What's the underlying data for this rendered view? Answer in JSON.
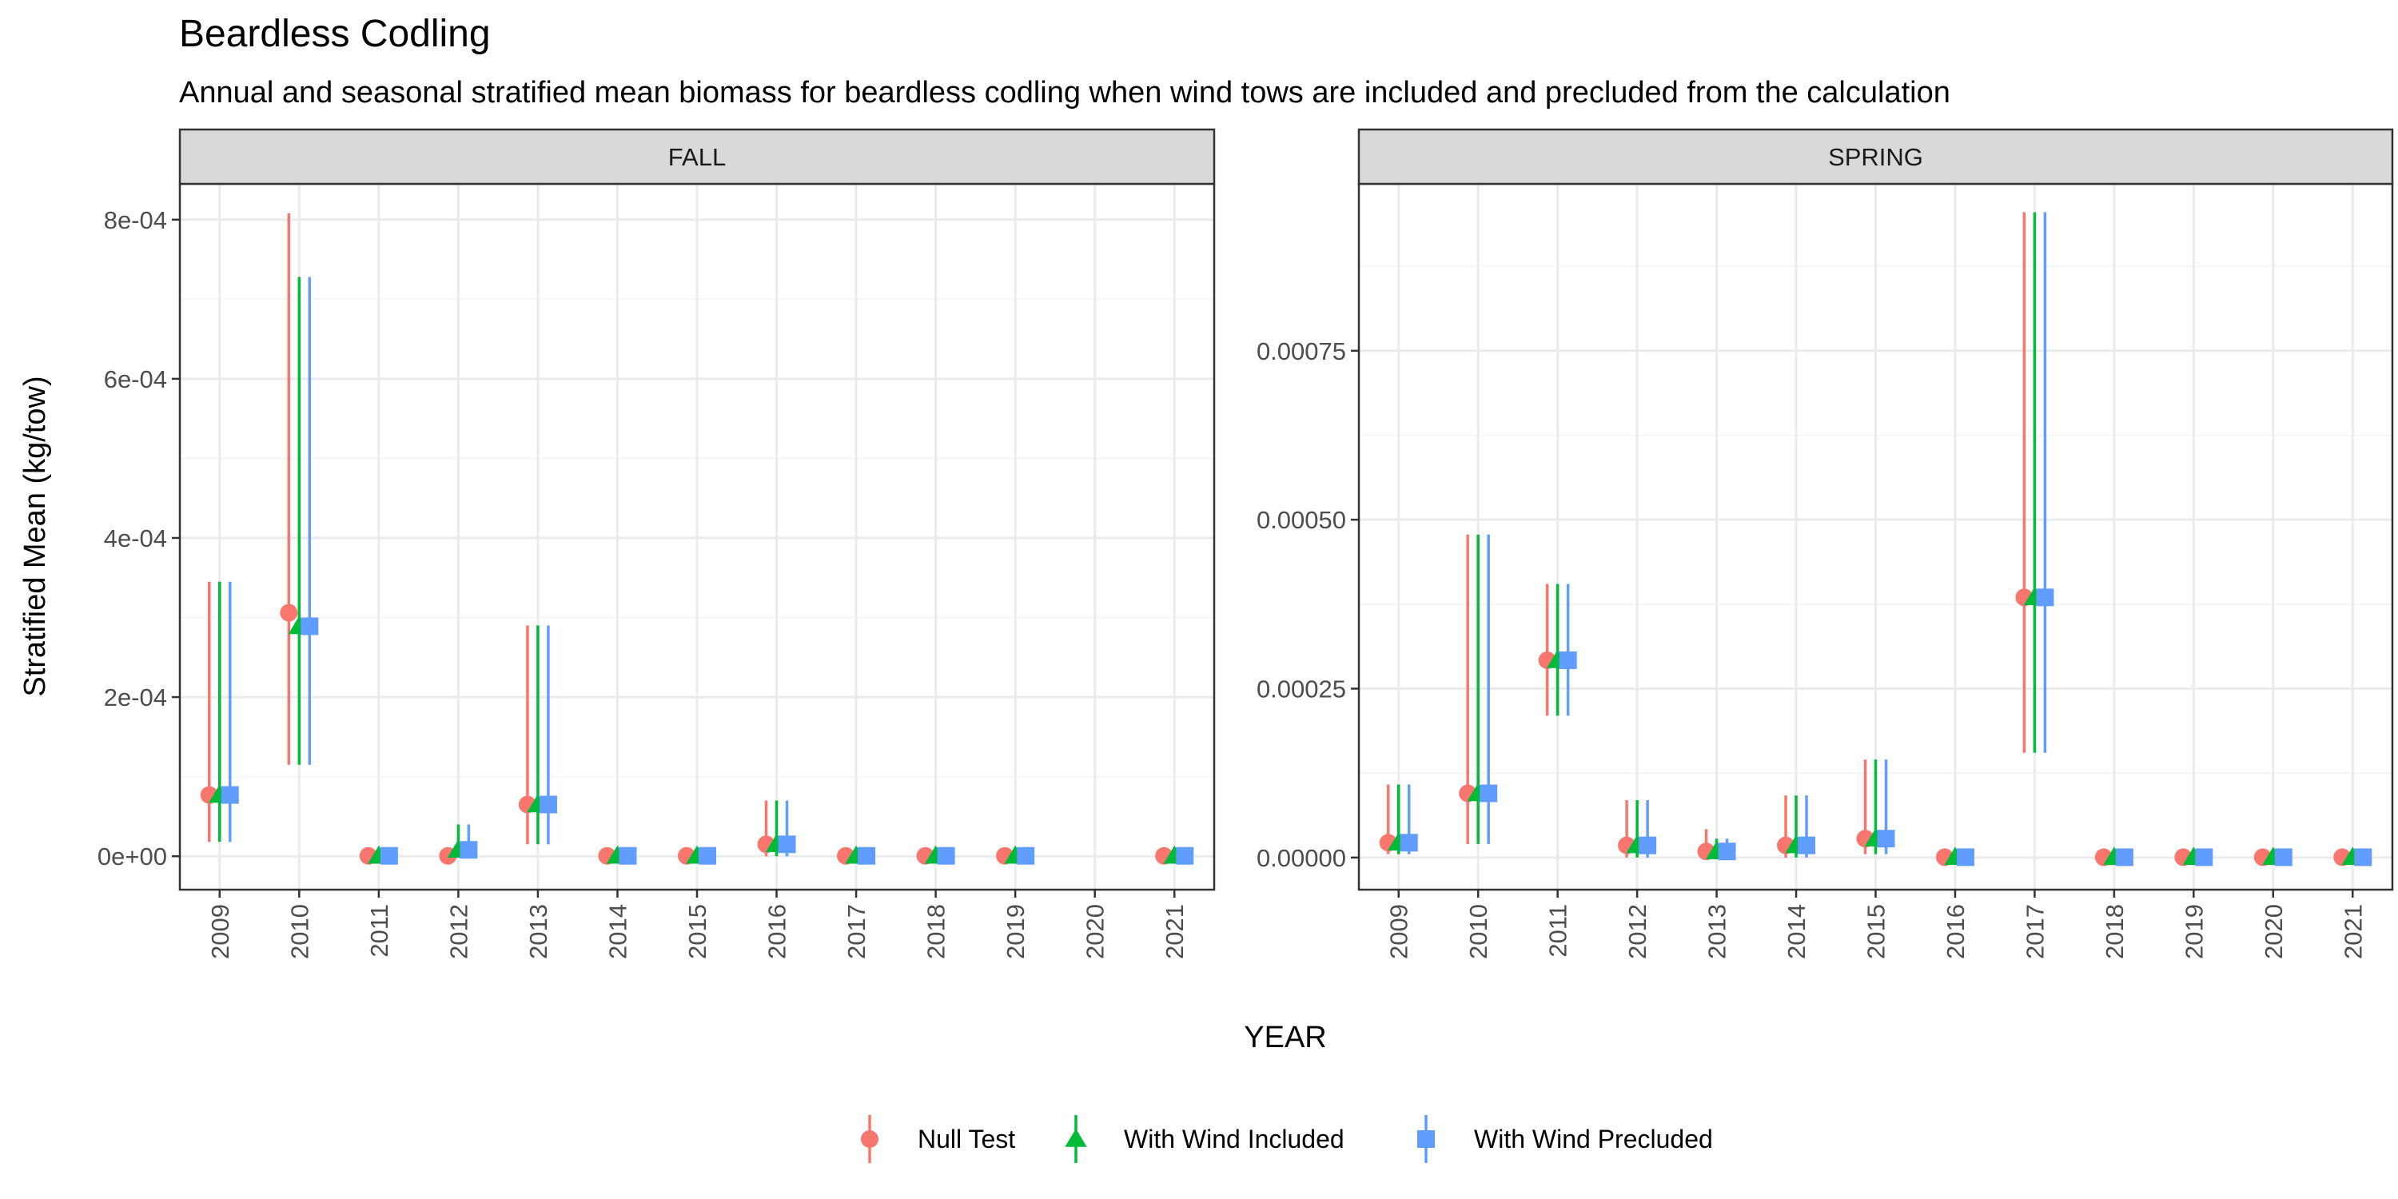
{
  "title": "Beardless Codling",
  "subtitle": "Annual and seasonal stratified mean biomass for beardless codling when wind tows are included and precluded from the calculation",
  "ylabel": "Stratified Mean (kg/tow)",
  "xlabel": "YEAR",
  "colors": {
    "null_test": "#F8766D",
    "with_wind_included": "#00BA38",
    "with_wind_precluded": "#619CFF",
    "strip_fill": "#D9D9D9",
    "panel_border": "#333333",
    "grid_major": "#EBEBEB",
    "grid_minor": "#F4F4F4"
  },
  "legend": {
    "position": "bottom",
    "items": [
      {
        "key": "null_test",
        "label": "Null Test",
        "shape": "circle"
      },
      {
        "key": "with_wind_included",
        "label": "With Wind Included",
        "shape": "triangle"
      },
      {
        "key": "with_wind_precluded",
        "label": "With Wind Precluded",
        "shape": "square"
      }
    ]
  },
  "chart_data": [
    {
      "type": "scatter",
      "panel": "FALL",
      "years": [
        "2009",
        "2010",
        "2011",
        "2012",
        "2013",
        "2014",
        "2015",
        "2016",
        "2017",
        "2018",
        "2019",
        "2020",
        "2021"
      ],
      "ylim": [
        -4.2e-05,
        0.000845
      ],
      "yticks": [
        0,
        0.0002,
        0.0004,
        0.0006,
        0.0008
      ],
      "ytick_labels": [
        "0e+00",
        "2e-04",
        "4e-04",
        "6e-04",
        "8e-04"
      ],
      "grid": true,
      "series": [
        {
          "name": "Null Test",
          "key": "null_test",
          "points": [
            {
              "year": "2009",
              "y": 7.7e-05,
              "lo": 1.8e-05,
              "hi": 0.000345
            },
            {
              "year": "2010",
              "y": 0.000306,
              "lo": 0.000115,
              "hi": 0.000808
            },
            {
              "year": "2011",
              "y": 5e-07,
              "lo": 0,
              "hi": 1e-06
            },
            {
              "year": "2012",
              "y": 5e-07,
              "lo": 0,
              "hi": 1e-06
            },
            {
              "year": "2013",
              "y": 6.5e-05,
              "lo": 1.5e-05,
              "hi": 0.00029
            },
            {
              "year": "2014",
              "y": 5e-07,
              "lo": 0,
              "hi": 1e-06
            },
            {
              "year": "2015",
              "y": 5e-07,
              "lo": 0,
              "hi": 1e-06
            },
            {
              "year": "2016",
              "y": 1.5e-05,
              "lo": 0,
              "hi": 7e-05
            },
            {
              "year": "2017",
              "y": 5e-07,
              "lo": 0,
              "hi": 1e-06
            },
            {
              "year": "2018",
              "y": 5e-07,
              "lo": 0,
              "hi": 1e-06
            },
            {
              "year": "2019",
              "y": 5e-07,
              "lo": 0,
              "hi": 1e-06
            },
            {
              "year": "2021",
              "y": 5e-07,
              "lo": 0,
              "hi": 1e-06
            }
          ]
        },
        {
          "name": "With Wind Included",
          "key": "with_wind_included",
          "points": [
            {
              "year": "2009",
              "y": 7.7e-05,
              "lo": 1.8e-05,
              "hi": 0.000345
            },
            {
              "year": "2010",
              "y": 0.000289,
              "lo": 0.000115,
              "hi": 0.000728
            },
            {
              "year": "2011",
              "y": 5e-07,
              "lo": 0,
              "hi": 1e-06
            },
            {
              "year": "2012",
              "y": 8e-06,
              "lo": 0,
              "hi": 4e-05
            },
            {
              "year": "2013",
              "y": 6.5e-05,
              "lo": 1.5e-05,
              "hi": 0.00029
            },
            {
              "year": "2014",
              "y": 5e-07,
              "lo": 0,
              "hi": 1e-06
            },
            {
              "year": "2015",
              "y": 5e-07,
              "lo": 0,
              "hi": 1e-06
            },
            {
              "year": "2016",
              "y": 1.5e-05,
              "lo": 0,
              "hi": 7e-05
            },
            {
              "year": "2017",
              "y": 5e-07,
              "lo": 0,
              "hi": 1e-06
            },
            {
              "year": "2018",
              "y": 5e-07,
              "lo": 0,
              "hi": 1e-06
            },
            {
              "year": "2019",
              "y": 5e-07,
              "lo": 0,
              "hi": 1e-06
            },
            {
              "year": "2021",
              "y": 5e-07,
              "lo": 0,
              "hi": 1e-06
            }
          ]
        },
        {
          "name": "With Wind Precluded",
          "key": "with_wind_precluded",
          "points": [
            {
              "year": "2009",
              "y": 7.7e-05,
              "lo": 1.8e-05,
              "hi": 0.000345
            },
            {
              "year": "2010",
              "y": 0.000289,
              "lo": 0.000115,
              "hi": 0.000728
            },
            {
              "year": "2011",
              "y": 5e-07,
              "lo": 0,
              "hi": 1e-06
            },
            {
              "year": "2012",
              "y": 8e-06,
              "lo": 0,
              "hi": 4e-05
            },
            {
              "year": "2013",
              "y": 6.5e-05,
              "lo": 1.5e-05,
              "hi": 0.00029
            },
            {
              "year": "2014",
              "y": 5e-07,
              "lo": 0,
              "hi": 1e-06
            },
            {
              "year": "2015",
              "y": 5e-07,
              "lo": 0,
              "hi": 1e-06
            },
            {
              "year": "2016",
              "y": 1.5e-05,
              "lo": 0,
              "hi": 7e-05
            },
            {
              "year": "2017",
              "y": 5e-07,
              "lo": 0,
              "hi": 1e-06
            },
            {
              "year": "2018",
              "y": 5e-07,
              "lo": 0,
              "hi": 1e-06
            },
            {
              "year": "2019",
              "y": 5e-07,
              "lo": 0,
              "hi": 1e-06
            },
            {
              "year": "2021",
              "y": 5e-07,
              "lo": 0,
              "hi": 1e-06
            }
          ]
        }
      ]
    },
    {
      "type": "scatter",
      "panel": "SPRING",
      "years": [
        "2009",
        "2010",
        "2011",
        "2012",
        "2013",
        "2014",
        "2015",
        "2016",
        "2017",
        "2018",
        "2019",
        "2020",
        "2021"
      ],
      "ylim": [
        -4.75e-05,
        0.000997
      ],
      "yticks": [
        0,
        0.00025,
        0.0005,
        0.00075
      ],
      "ytick_labels": [
        "0.00000",
        "0.00025",
        "0.00050",
        "0.00075"
      ],
      "grid": true,
      "series": [
        {
          "name": "Null Test",
          "key": "null_test",
          "points": [
            {
              "year": "2009",
              "y": 2.2e-05,
              "lo": 5e-06,
              "hi": 0.000108
            },
            {
              "year": "2010",
              "y": 9.5e-05,
              "lo": 2e-05,
              "hi": 0.000478
            },
            {
              "year": "2011",
              "y": 0.000292,
              "lo": 0.00021,
              "hi": 0.000405
            },
            {
              "year": "2012",
              "y": 1.8e-05,
              "lo": 0,
              "hi": 8.5e-05
            },
            {
              "year": "2013",
              "y": 9e-06,
              "lo": 0,
              "hi": 4.2e-05
            },
            {
              "year": "2014",
              "y": 1.8e-05,
              "lo": 0,
              "hi": 9.2e-05
            },
            {
              "year": "2015",
              "y": 2.8e-05,
              "lo": 5e-06,
              "hi": 0.000145
            },
            {
              "year": "2016",
              "y": 5e-07,
              "lo": 0,
              "hi": 1e-06
            },
            {
              "year": "2017",
              "y": 0.000385,
              "lo": 0.000155,
              "hi": 0.000955
            },
            {
              "year": "2018",
              "y": 5e-07,
              "lo": 0,
              "hi": 1e-06
            },
            {
              "year": "2019",
              "y": 5e-07,
              "lo": 0,
              "hi": 1e-06
            },
            {
              "year": "2020",
              "y": 5e-07,
              "lo": 0,
              "hi": 1e-06
            },
            {
              "year": "2021",
              "y": 5e-07,
              "lo": 0,
              "hi": 1e-06
            }
          ]
        },
        {
          "name": "With Wind Included",
          "key": "with_wind_included",
          "points": [
            {
              "year": "2009",
              "y": 2.2e-05,
              "lo": 5e-06,
              "hi": 0.000108
            },
            {
              "year": "2010",
              "y": 9.5e-05,
              "lo": 2e-05,
              "hi": 0.000478
            },
            {
              "year": "2011",
              "y": 0.000292,
              "lo": 0.00021,
              "hi": 0.000405
            },
            {
              "year": "2012",
              "y": 1.8e-05,
              "lo": 0,
              "hi": 8.5e-05
            },
            {
              "year": "2013",
              "y": 9e-06,
              "lo": 0,
              "hi": 2.8e-05
            },
            {
              "year": "2014",
              "y": 1.8e-05,
              "lo": 0,
              "hi": 9.2e-05
            },
            {
              "year": "2015",
              "y": 2.8e-05,
              "lo": 5e-06,
              "hi": 0.000145
            },
            {
              "year": "2016",
              "y": 5e-07,
              "lo": 0,
              "hi": 1e-06
            },
            {
              "year": "2017",
              "y": 0.000385,
              "lo": 0.000155,
              "hi": 0.000955
            },
            {
              "year": "2018",
              "y": 5e-07,
              "lo": 0,
              "hi": 1e-06
            },
            {
              "year": "2019",
              "y": 5e-07,
              "lo": 0,
              "hi": 1e-06
            },
            {
              "year": "2020",
              "y": 5e-07,
              "lo": 0,
              "hi": 1e-06
            },
            {
              "year": "2021",
              "y": 5e-07,
              "lo": 0,
              "hi": 1e-06
            }
          ]
        },
        {
          "name": "With Wind Precluded",
          "key": "with_wind_precluded",
          "points": [
            {
              "year": "2009",
              "y": 2.2e-05,
              "lo": 5e-06,
              "hi": 0.000108
            },
            {
              "year": "2010",
              "y": 9.5e-05,
              "lo": 2e-05,
              "hi": 0.000478
            },
            {
              "year": "2011",
              "y": 0.000292,
              "lo": 0.00021,
              "hi": 0.000405
            },
            {
              "year": "2012",
              "y": 1.8e-05,
              "lo": 0,
              "hi": 8.5e-05
            },
            {
              "year": "2013",
              "y": 9e-06,
              "lo": 0,
              "hi": 2.8e-05
            },
            {
              "year": "2014",
              "y": 1.8e-05,
              "lo": 0,
              "hi": 9.2e-05
            },
            {
              "year": "2015",
              "y": 2.8e-05,
              "lo": 5e-06,
              "hi": 0.000145
            },
            {
              "year": "2016",
              "y": 5e-07,
              "lo": 0,
              "hi": 1e-06
            },
            {
              "year": "2017",
              "y": 0.000385,
              "lo": 0.000155,
              "hi": 0.000955
            },
            {
              "year": "2018",
              "y": 5e-07,
              "lo": 0,
              "hi": 1e-06
            },
            {
              "year": "2019",
              "y": 5e-07,
              "lo": 0,
              "hi": 1e-06
            },
            {
              "year": "2020",
              "y": 5e-07,
              "lo": 0,
              "hi": 1e-06
            },
            {
              "year": "2021",
              "y": 5e-07,
              "lo": 0,
              "hi": 1e-06
            }
          ]
        }
      ]
    }
  ]
}
